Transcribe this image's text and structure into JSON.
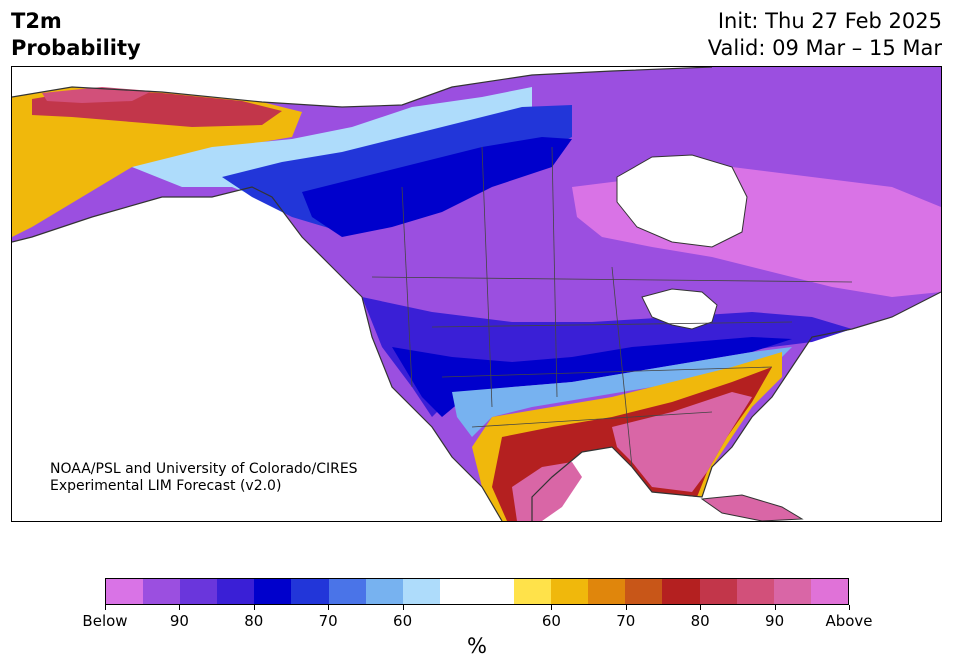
{
  "header": {
    "title_line1": "T2m",
    "title_line2": "Probability",
    "init_text": "Init: Thu 27 Feb 2025",
    "valid_text": "Valid: 09 Mar – 15 Mar"
  },
  "map": {
    "credit_line1": "NOAA/PSL and University of Colorado/CIRES",
    "credit_line2": "Experimental LIM Forecast (v2.0)"
  },
  "colorbar": {
    "unit": "%",
    "tick_labels": [
      "Below",
      "90",
      "80",
      "70",
      "60",
      "60",
      "70",
      "80",
      "90",
      "Above"
    ],
    "below_colors": [
      "#d973e6",
      "#9b4fe0",
      "#6a36dc",
      "#3a1fd6",
      "#0000cc",
      "#2236d9",
      "#4a74e8",
      "#77b2f0",
      "#aedcfb"
    ],
    "neutral_color": "#ffffff",
    "above_colors": [
      "#ffe24a",
      "#f0b80c",
      "#e0860c",
      "#c85618",
      "#b42020",
      "#c2364a",
      "#d2507a",
      "#d966a6",
      "#e072d8"
    ]
  }
}
